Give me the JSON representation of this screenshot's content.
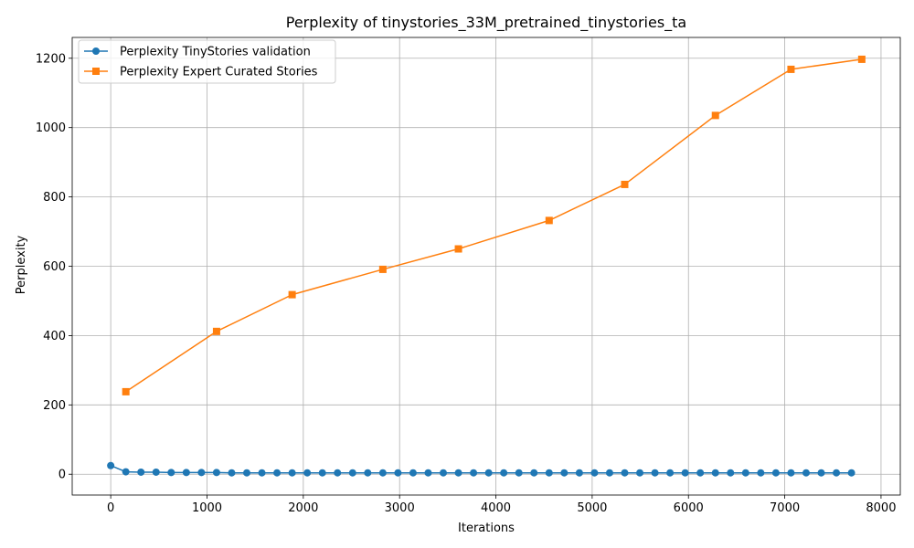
{
  "chart_data": {
    "type": "line",
    "title": "Perplexity of tinystories_33M_pretrained_tinystories_ta",
    "xlabel": "Iterations",
    "ylabel": "Perplexity",
    "xlim": [
      -400,
      8200
    ],
    "ylim": [
      -60,
      1260
    ],
    "x_ticks": [
      0,
      1000,
      2000,
      3000,
      4000,
      5000,
      6000,
      7000,
      8000
    ],
    "y_ticks": [
      0,
      200,
      400,
      600,
      800,
      1000,
      1200
    ],
    "grid": true,
    "legend_position": "top-left",
    "series": [
      {
        "name": "Perplexity TinyStories validation",
        "color": "#1f77b4",
        "marker": "circle",
        "x": [
          0,
          157,
          314,
          471,
          628,
          785,
          942,
          1099,
          1256,
          1413,
          1570,
          1727,
          1884,
          2041,
          2198,
          2355,
          2512,
          2669,
          2826,
          2983,
          3140,
          3297,
          3454,
          3611,
          3768,
          3925,
          4082,
          4239,
          4396,
          4553,
          4710,
          4867,
          5024,
          5181,
          5338,
          5495,
          5652,
          5809,
          5966,
          6123,
          6280,
          6437,
          6594,
          6751,
          6908,
          7065,
          7222,
          7379,
          7536,
          7693
        ],
        "y": [
          25,
          7,
          6,
          6,
          5,
          5,
          5,
          5,
          4,
          4,
          4,
          4,
          4,
          4,
          4,
          4,
          4,
          4,
          4,
          4,
          4,
          4,
          4,
          4,
          4,
          4,
          4,
          4,
          4,
          4,
          4,
          4,
          4,
          4,
          4,
          4,
          4,
          4,
          4,
          4,
          4,
          4,
          4,
          4,
          4,
          4,
          4,
          4,
          4,
          4
        ]
      },
      {
        "name": "Perplexity Expert Curated Stories",
        "color": "#ff7f0e",
        "marker": "square",
        "x": [
          157,
          1099,
          1884,
          2826,
          3611,
          4553,
          5338,
          6280,
          7065,
          7800
        ],
        "y": [
          238,
          412,
          518,
          591,
          650,
          732,
          836,
          1035,
          1168,
          1197
        ]
      }
    ]
  }
}
